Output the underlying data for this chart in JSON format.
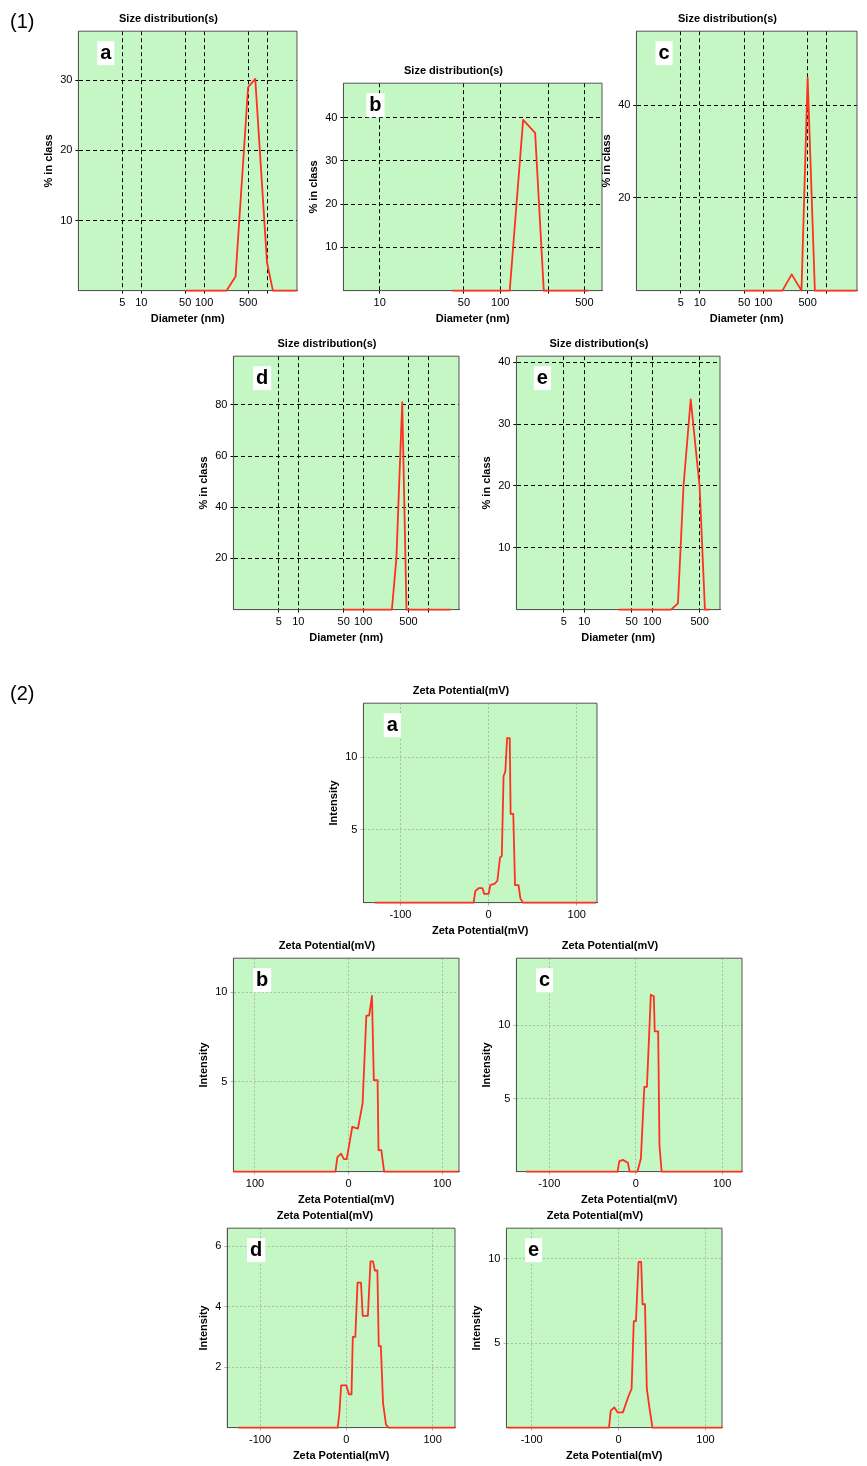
{
  "chart_data": [
    {
      "type": "line",
      "title": "Size distribution(s)",
      "xlabel": "Diameter (nm)",
      "ylabel": "% in class",
      "annotations": [
        "(1)",
        "a"
      ],
      "log": "x",
      "grid": true,
      "xlim": [
        1,
        3000
      ],
      "xticks": [
        5,
        10,
        50,
        100,
        500,
        {
          "value": 1000,
          "label": null
        }
      ],
      "ylim": [
        0,
        37
      ],
      "yticks": [
        10,
        20,
        30
      ],
      "series": [
        {
          "color": "#ff3020",
          "x": [
            50,
            228,
            316,
            500,
            650,
            1000,
            1240,
            3000
          ],
          "values": [
            0,
            0,
            2,
            29,
            30.2,
            4,
            0,
            0
          ]
        }
      ]
    },
    {
      "type": "line",
      "title": "Size distribution(s)",
      "xlabel": "Diameter (nm)",
      "ylabel": "% in class",
      "annotations": [
        "b"
      ],
      "log": "x",
      "grid": true,
      "xlim": [
        5,
        700
      ],
      "xticks": [
        10,
        50,
        100,
        {
          "value": 250,
          "label": null
        },
        500
      ],
      "ylim": [
        0,
        48
      ],
      "yticks": [
        10,
        20,
        30,
        40
      ],
      "series": [
        {
          "color": "#ff3020",
          "x": [
            40,
            120,
            155,
            195,
            230,
            540
          ],
          "values": [
            0,
            0,
            39.5,
            36.5,
            0,
            0
          ]
        }
      ]
    },
    {
      "type": "line",
      "title": "Size distribution(s)",
      "xlabel": "Diameter (nm)",
      "ylabel": "% in class",
      "annotations": [
        "c"
      ],
      "log": "x",
      "grid": true,
      "xlim": [
        1,
        3000
      ],
      "xticks": [
        5,
        10,
        50,
        100,
        500,
        {
          "value": 1000,
          "label": null
        }
      ],
      "ylim": [
        0,
        56
      ],
      "yticks": [
        20,
        40
      ],
      "series": [
        {
          "color": "#ff3020",
          "x": [
            50,
            200,
            280,
            400,
            500,
            650,
            3000
          ],
          "values": [
            0,
            0,
            3.5,
            0,
            46,
            0,
            0
          ]
        }
      ]
    },
    {
      "type": "line",
      "title": "Size distribution(s)",
      "xlabel": "Diameter (nm)",
      "ylabel": "% in class",
      "annotations": [
        "d"
      ],
      "log": "x",
      "grid": true,
      "xlim": [
        1,
        3000
      ],
      "xticks": [
        5,
        10,
        50,
        100,
        500,
        {
          "value": 1000,
          "label": null
        }
      ],
      "ylim": [
        0,
        99
      ],
      "yticks": [
        20,
        40,
        60,
        80
      ],
      "series": [
        {
          "color": "#ff3020",
          "x": [
            50,
            277,
            325,
            400,
            465,
            2200
          ],
          "values": [
            0,
            0,
            20,
            81,
            0,
            0
          ]
        }
      ]
    },
    {
      "type": "line",
      "title": "Size distribution(s)",
      "xlabel": "Diameter (nm)",
      "ylabel": "% in class",
      "annotations": [
        "e"
      ],
      "log": "x",
      "grid": true,
      "xlim": [
        1,
        1000
      ],
      "xticks": [
        5,
        10,
        50,
        100,
        500
      ],
      "ylim": [
        0,
        41
      ],
      "yticks": [
        10,
        20,
        30,
        40
      ],
      "series": [
        {
          "color": "#ff3020",
          "x": [
            32,
            190,
            240,
            290,
            370,
            500,
            600,
            700
          ],
          "values": [
            0,
            0,
            1,
            20,
            34,
            20,
            0,
            0
          ]
        }
      ]
    },
    {
      "type": "line",
      "title": "Zeta Potential(mV)",
      "xlabel": "Zeta Potential(mV)",
      "ylabel": "Intensity",
      "annotations": [
        "(2)",
        "a"
      ],
      "grid": true,
      "xlim": [
        -142,
        123
      ],
      "xticks": [
        -100,
        0,
        100
      ],
      "ylim": [
        0,
        13.7
      ],
      "yticks": [
        5,
        10
      ],
      "series": [
        {
          "color": "#ff3020",
          "x": [
            -129,
            -17,
            -15,
            -11,
            -7,
            -5,
            0,
            2,
            7,
            10,
            13,
            15,
            17,
            19,
            21,
            24,
            25,
            28,
            30,
            34,
            36,
            39,
            122
          ],
          "values": [
            0,
            0,
            0.8,
            1.0,
            1.0,
            0.6,
            0.6,
            1.2,
            1.3,
            1.5,
            3.1,
            3.2,
            8.7,
            9.0,
            11.3,
            11.3,
            6.1,
            6.1,
            1.2,
            1.2,
            0.3,
            0,
            0
          ]
        }
      ]
    },
    {
      "type": "line",
      "title": "Zeta Potential(mV)",
      "xlabel": "Zeta Potential(mV)",
      "ylabel": "Intensity",
      "annotations": [
        "b"
      ],
      "grid": true,
      "xlim": [
        -123,
        118
      ],
      "xticks": [
        {
          "value": -100,
          "label": "100"
        },
        0,
        100
      ],
      "ylim": [
        0,
        11.9
      ],
      "yticks": [
        5,
        10
      ],
      "series": [
        {
          "color": "#ff3020",
          "x": [
            -123,
            -14,
            -12,
            -8,
            -5,
            -2,
            0,
            4,
            10,
            15,
            19,
            22,
            25,
            27,
            31,
            32,
            35,
            38,
            118
          ],
          "values": [
            0,
            0,
            0.8,
            1.0,
            0.7,
            0.7,
            1.3,
            2.5,
            2.4,
            3.8,
            8.7,
            8.7,
            9.8,
            5.1,
            5.1,
            1.2,
            1.2,
            0,
            0
          ]
        }
      ]
    },
    {
      "type": "line",
      "title": "Zeta Potential(mV)",
      "xlabel": "Zeta Potential(mV)",
      "ylabel": "Intensity",
      "annotations": [
        "c"
      ],
      "grid": true,
      "xlim": [
        -138,
        123
      ],
      "xticks": [
        -100,
        0,
        100
      ],
      "ylim": [
        0,
        14.6
      ],
      "yticks": [
        5,
        10
      ],
      "series": [
        {
          "color": "#ff3020",
          "x": [
            -127,
            -21,
            -19,
            -15,
            -9,
            -7,
            2,
            6,
            10,
            13,
            17.5,
            21,
            22,
            26,
            27.5,
            30,
            123
          ],
          "values": [
            0,
            0,
            0.7,
            0.8,
            0.6,
            0,
            0,
            0.9,
            5.8,
            5.8,
            12.1,
            12,
            9.6,
            9.6,
            1.8,
            0,
            0
          ]
        }
      ]
    },
    {
      "type": "line",
      "title": "Zeta Potential(mV)",
      "xlabel": "Zeta Potential(mV)",
      "ylabel": "Intensity",
      "annotations": [
        "d"
      ],
      "grid": true,
      "xlim": [
        -138,
        126
      ],
      "xticks": [
        -100,
        0,
        100
      ],
      "ylim": [
        0,
        6.6
      ],
      "yticks": [
        2,
        4,
        6
      ],
      "series": [
        {
          "color": "#ff3020",
          "x": [
            -125,
            -10,
            -8,
            -6,
            0,
            3,
            6,
            7.5,
            10.4,
            13,
            17,
            19,
            25,
            28,
            31,
            33,
            36,
            37.6,
            40,
            42.6,
            46,
            49,
            126
          ],
          "values": [
            0,
            0,
            0.5,
            1.4,
            1.4,
            1.1,
            1.1,
            3.0,
            3.0,
            4.8,
            4.8,
            3.7,
            3.7,
            5.5,
            5.5,
            5.2,
            5.2,
            2.7,
            2.7,
            0.8,
            0.1,
            0,
            0
          ]
        }
      ]
    },
    {
      "type": "line",
      "title": "Zeta Potential(mV)",
      "xlabel": "Zeta Potential(mV)",
      "ylabel": "Intensity",
      "annotations": [
        "e"
      ],
      "grid": true,
      "xlim": [
        -129,
        119
      ],
      "xticks": [
        -100,
        0,
        100
      ],
      "ylim": [
        0,
        11.8
      ],
      "yticks": [
        5,
        10
      ],
      "series": [
        {
          "color": "#ff3020",
          "x": [
            -128,
            -11,
            -9,
            -5,
            -1,
            5,
            7,
            11,
            15,
            17.5,
            20,
            23,
            26,
            27.6,
            30.4,
            32.5,
            36,
            39,
            119
          ],
          "values": [
            0,
            0,
            1.0,
            1.2,
            0.9,
            0.9,
            1.2,
            1.8,
            2.3,
            6.3,
            6.3,
            9.8,
            9.8,
            7.3,
            7.3,
            2.3,
            1.0,
            0,
            0
          ]
        }
      ]
    }
  ]
}
